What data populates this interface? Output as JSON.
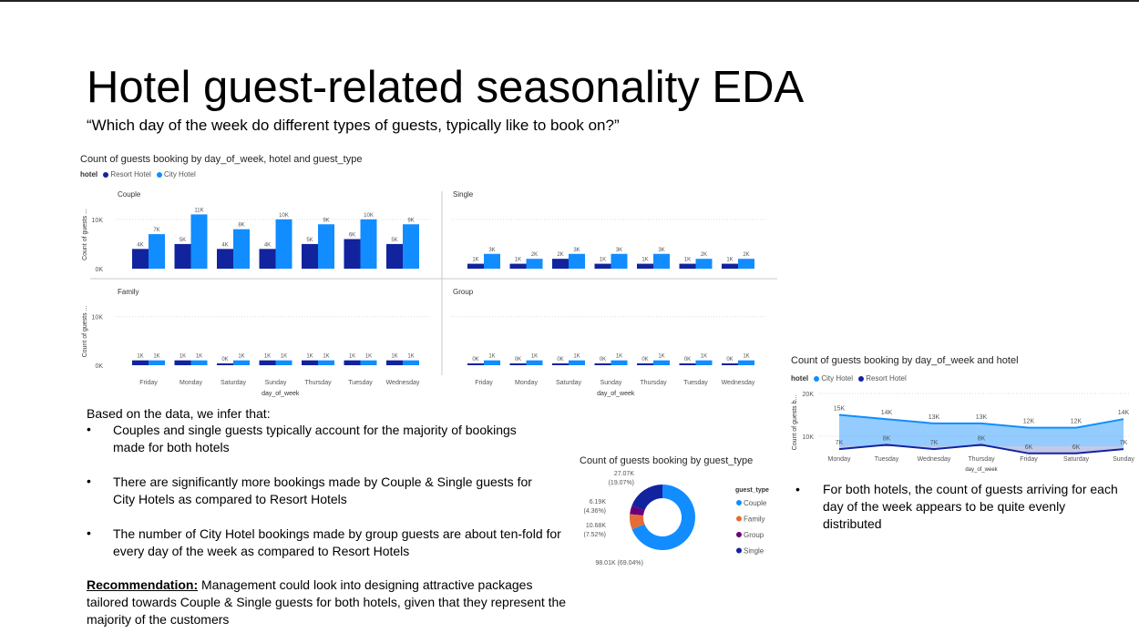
{
  "page": {
    "title": "Hotel guest-related seasonality EDA",
    "subtitle": "“Which day of the week do different types of guests, typically like to book on?”"
  },
  "colors": {
    "city": "#118DFF",
    "resort": "#12239E",
    "family": "#E66C37",
    "group": "#6B007B"
  },
  "chart_data": [
    {
      "type": "bar",
      "title": "Count of guests booking by day_of_week, hotel and guest_type",
      "legend_title": "hotel",
      "legend": [
        "Resort Hotel",
        "City Hotel"
      ],
      "xlabel": "day_of_week",
      "ylabel": "Count of guests ...",
      "categories": [
        "Friday",
        "Monday",
        "Saturday",
        "Sunday",
        "Thursday",
        "Tuesday",
        "Wednesday"
      ],
      "ylim": [
        0,
        12000
      ],
      "yticks": [
        "0K",
        "10K"
      ],
      "panels": [
        {
          "name": "Couple",
          "series": [
            {
              "name": "Resort Hotel",
              "values": [
                4000,
                5000,
                4000,
                4000,
                5000,
                6000,
                5000
              ],
              "labels": [
                "4K",
                "5K",
                "4K",
                "4K",
                "5K",
                "6K",
                "5K"
              ]
            },
            {
              "name": "City Hotel",
              "values": [
                7000,
                11000,
                8000,
                10000,
                9000,
                10000,
                9000
              ],
              "labels": [
                "7K",
                "11K",
                "8K",
                "10K",
                "9K",
                "10K",
                "9K"
              ]
            }
          ]
        },
        {
          "name": "Single",
          "series": [
            {
              "name": "Resort Hotel",
              "values": [
                1000,
                1000,
                2000,
                1000,
                1000,
                1000,
                1000
              ],
              "labels": [
                "1K",
                "1K",
                "2K",
                "1K",
                "1K",
                "1K",
                "1K"
              ]
            },
            {
              "name": "City Hotel",
              "values": [
                3000,
                2000,
                3000,
                3000,
                3000,
                2000,
                2000
              ],
              "labels": [
                "3K",
                "2K",
                "3K",
                "3K",
                "3K",
                "2K",
                "2K"
              ]
            }
          ]
        },
        {
          "name": "Family",
          "series": [
            {
              "name": "Resort Hotel",
              "values": [
                1000,
                1000,
                0,
                1000,
                1000,
                1000,
                1000
              ],
              "labels": [
                "1K",
                "1K",
                "0K",
                "1K",
                "1K",
                "1K",
                "1K"
              ]
            },
            {
              "name": "City Hotel",
              "values": [
                1000,
                1000,
                1000,
                1000,
                1000,
                1000,
                1000
              ],
              "labels": [
                "1K",
                "1K",
                "1K",
                "1K",
                "1K",
                "1K",
                "1K"
              ]
            }
          ]
        },
        {
          "name": "Group",
          "series": [
            {
              "name": "Resort Hotel",
              "values": [
                0,
                0,
                0,
                0,
                0,
                0,
                0
              ],
              "labels": [
                "0K",
                "0K",
                "0K",
                "0K",
                "0K",
                "0K",
                "0K"
              ]
            },
            {
              "name": "City Hotel",
              "values": [
                1000,
                1000,
                1000,
                1000,
                1000,
                1000,
                1000
              ],
              "labels": [
                "1K",
                "1K",
                "1K",
                "1K",
                "1K",
                "1K",
                "1K"
              ]
            }
          ]
        }
      ]
    },
    {
      "type": "area",
      "title": "Count of guests booking by day_of_week and hotel",
      "legend_title": "hotel",
      "legend": [
        "City Hotel",
        "Resort Hotel"
      ],
      "xlabel": "day_of_week",
      "ylabel": "Count of guests b...",
      "categories": [
        "Monday",
        "Tuesday",
        "Wednesday",
        "Thursday",
        "Friday",
        "Saturday",
        "Sunday"
      ],
      "yticks": [
        "10K",
        "20K"
      ],
      "series": [
        {
          "name": "City Hotel",
          "values": [
            15000,
            14000,
            13000,
            13000,
            12000,
            12000,
            14000
          ],
          "labels": [
            "15K",
            "14K",
            "13K",
            "13K",
            "12K",
            "12K",
            "14K"
          ]
        },
        {
          "name": "Resort Hotel",
          "values": [
            7000,
            8000,
            7000,
            8000,
            6000,
            6000,
            7000
          ],
          "labels": [
            "7K",
            "8K",
            "7K",
            "8K",
            "6K",
            "6K",
            "7K"
          ]
        }
      ]
    },
    {
      "type": "pie",
      "title": "Count of guests booking by guest_type",
      "legend_title": "guest_type",
      "categories": [
        "Couple",
        "Family",
        "Group",
        "Single"
      ],
      "values": [
        98010,
        10680,
        6190,
        27070
      ],
      "labels": [
        "98.01K (69.04%)",
        "10.68K (7.52%)",
        "6.19K (4.36%)",
        "27.07K (19.07%)"
      ]
    }
  ],
  "notes": {
    "intro": "Based on the data, we infer that:",
    "bullets": [
      "Couples and single guests typically account for the majority of bookings made for both hotels",
      "There are significantly more bookings made by Couple & Single guests for City Hotels as compared to Resort Hotels",
      "The number of City Hotel bookings made by group guests are about ten-fold for every day of the week as compared to Resort Hotels"
    ],
    "rec_label": "Recommendation:",
    "rec_text": " Management could look into designing attractive packages tailored towards Couple & Single guests for both hotels, given that they represent the majority of the customers",
    "right_bullet": "For both hotels, the count of guests arriving for each day of the week appears to be quite evenly distributed"
  },
  "bullet_symbol": "•"
}
